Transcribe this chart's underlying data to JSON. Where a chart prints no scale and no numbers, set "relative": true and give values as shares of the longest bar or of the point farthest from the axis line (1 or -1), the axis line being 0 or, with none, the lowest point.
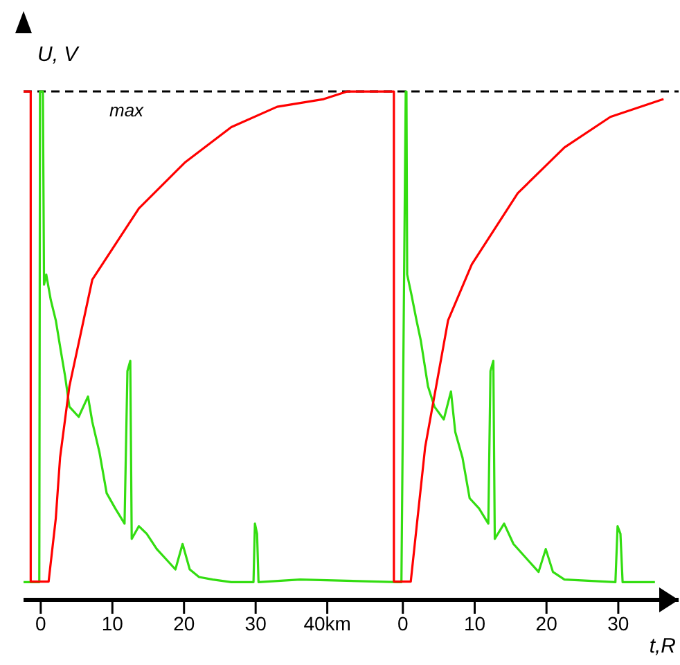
{
  "chart_data": [
    {
      "type": "line",
      "relative": true,
      "ylabel": "U, V",
      "xlim": [
        -2.4,
        49.8
      ],
      "xticks": [
        0,
        10,
        20,
        30,
        {
          "value": 40,
          "label": "40km"
        }
      ],
      "grid": false,
      "legend": false,
      "marker": "none",
      "line_style": "solid",
      "ref_lines": [
        {
          "axis": "y",
          "value": 1,
          "label": "max",
          "line_style": "dashed",
          "color": "#000000"
        }
      ],
      "series": [
        {
          "color": "#33dd11",
          "x": [
            -2.4,
            -0.2,
            -0.1,
            0.3,
            0.46,
            0.77,
            1.4,
            2.1,
            2.8,
            3.4,
            4.0,
            5.3,
            6.6,
            7.2,
            8.2,
            9.2,
            10.4,
            11.7,
            12.1,
            12.5,
            12.7,
            13.7,
            14.8,
            16.2,
            17.5,
            18.8,
            19.8,
            20.8,
            22.1,
            24.0,
            26.6,
            29.7,
            29.9,
            30.2,
            30.4,
            36.2,
            49.8
          ],
          "values": [
            0.035,
            0.035,
            1,
            1,
            0.62,
            0.64,
            0.59,
            0.55,
            0.49,
            0.44,
            0.38,
            0.36,
            0.4,
            0.35,
            0.29,
            0.21,
            0.18,
            0.15,
            0.45,
            0.47,
            0.12,
            0.145,
            0.13,
            0.1,
            0.08,
            0.06,
            0.11,
            0.06,
            0.045,
            0.04,
            0.035,
            0.035,
            0.15,
            0.13,
            0.035,
            0.04,
            0.035
          ]
        },
        {
          "color": "#ff0000",
          "x": [
            -2.4,
            -1.4,
            -1.4,
            1.1,
            2.1,
            2.7,
            4.0,
            7.2,
            13.7,
            20.1,
            26.6,
            33.0,
            39.5,
            42.8,
            49.3,
            49.3,
            49.8
          ],
          "values": [
            1,
            1,
            0.036,
            0.036,
            0.16,
            0.28,
            0.42,
            0.63,
            0.77,
            0.86,
            0.93,
            0.97,
            0.985,
            1,
            1,
            0.036,
            0.036
          ]
        }
      ]
    },
    {
      "type": "line",
      "relative": true,
      "xlabel": "t,R",
      "xlim": [
        -0.75,
        38.4
      ],
      "xticks": [
        0,
        10,
        20,
        30
      ],
      "grid": false,
      "legend": false,
      "marker": "none",
      "line_style": "solid",
      "ref_lines": [
        {
          "axis": "y",
          "value": 1,
          "line_style": "dashed",
          "color": "#000000"
        }
      ],
      "series": [
        {
          "color": "#33dd11",
          "x": [
            -0.75,
            -0.2,
            0.4,
            0.5,
            0.6,
            1.2,
            1.9,
            2.5,
            3.5,
            4.4,
            5.7,
            6.7,
            7.3,
            8.3,
            9.3,
            10.6,
            11.9,
            12.2,
            12.6,
            12.8,
            14.1,
            15.4,
            17.3,
            18.9,
            19.9,
            20.9,
            22.5,
            29.6,
            29.9,
            30.3,
            30.6,
            35.1
          ],
          "values": [
            0.035,
            0.035,
            1,
            1,
            0.64,
            0.6,
            0.55,
            0.51,
            0.42,
            0.38,
            0.355,
            0.41,
            0.33,
            0.28,
            0.2,
            0.18,
            0.15,
            0.45,
            0.47,
            0.12,
            0.15,
            0.11,
            0.08,
            0.055,
            0.1,
            0.055,
            0.04,
            0.035,
            0.145,
            0.13,
            0.035,
            0.035
          ]
        },
        {
          "color": "#ff0000",
          "x": [
            -0.75,
            1.1,
            3.1,
            6.3,
            9.6,
            16.0,
            22.5,
            28.9,
            36.3
          ],
          "values": [
            0.036,
            0.036,
            0.3,
            0.55,
            0.66,
            0.8,
            0.89,
            0.95,
            0.985
          ]
        }
      ]
    }
  ]
}
